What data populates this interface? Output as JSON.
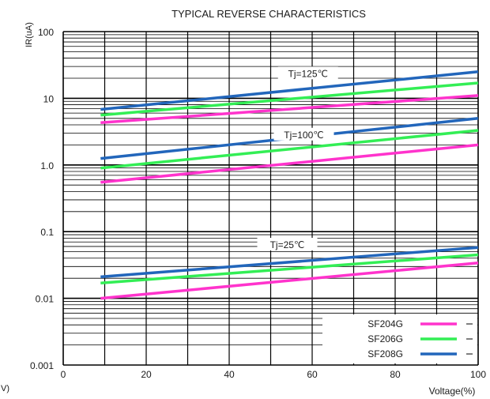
{
  "chart_data": {
    "type": "line",
    "title": "TYPICAL REVERSE CHARACTERISTICS",
    "xlabel": "Voltage(%)",
    "ylabel": "IR(uA)",
    "edge_label": "V)",
    "xlim": [
      0,
      100
    ],
    "ylim": [
      0.001,
      100
    ],
    "y_scale": "log",
    "x_ticks": [
      "0",
      "20",
      "40",
      "60",
      "80",
      "100"
    ],
    "y_ticks": [
      "100",
      "10",
      "1.0",
      "0.1",
      "0.01",
      "0.001"
    ],
    "annotations": [
      {
        "label": "Tj=125℃",
        "x": 59,
        "y": 24
      },
      {
        "label": "Tj=100℃",
        "x": 58,
        "y": 2.9
      },
      {
        "label": "Tj=25℃",
        "x": 54,
        "y": 0.065
      }
    ],
    "legend": {
      "position": "bottom-right",
      "entries": [
        "SF204G",
        "SF206G",
        "SF208G"
      ]
    },
    "colors": {
      "SF204G": "#ff33cc",
      "SF206G": "#33ee55",
      "SF208G": "#2266bb",
      "grid": "#000000"
    },
    "groups": [
      {
        "label": "Tj=125℃",
        "series": [
          {
            "name": "SF204G",
            "x": [
              9,
              100
            ],
            "y": [
              4.3,
              11
            ]
          },
          {
            "name": "SF206G",
            "x": [
              9,
              100
            ],
            "y": [
              5.6,
              17
            ]
          },
          {
            "name": "SF208G",
            "x": [
              9,
              100
            ],
            "y": [
              6.8,
              25
            ]
          }
        ]
      },
      {
        "label": "Tj=100℃",
        "series": [
          {
            "name": "SF204G",
            "x": [
              9,
              100
            ],
            "y": [
              0.55,
              2
            ]
          },
          {
            "name": "SF206G",
            "x": [
              9,
              100
            ],
            "y": [
              0.9,
              3.3
            ]
          },
          {
            "name": "SF208G",
            "x": [
              9,
              100
            ],
            "y": [
              1.25,
              5
            ]
          }
        ]
      },
      {
        "label": "Tj=25℃",
        "series": [
          {
            "name": "SF204G",
            "x": [
              9,
              100
            ],
            "y": [
              0.01,
              0.034
            ]
          },
          {
            "name": "SF206G",
            "x": [
              9,
              100
            ],
            "y": [
              0.017,
              0.045
            ]
          },
          {
            "name": "SF208G",
            "x": [
              9,
              100
            ],
            "y": [
              0.021,
              0.058
            ]
          }
        ]
      }
    ]
  }
}
